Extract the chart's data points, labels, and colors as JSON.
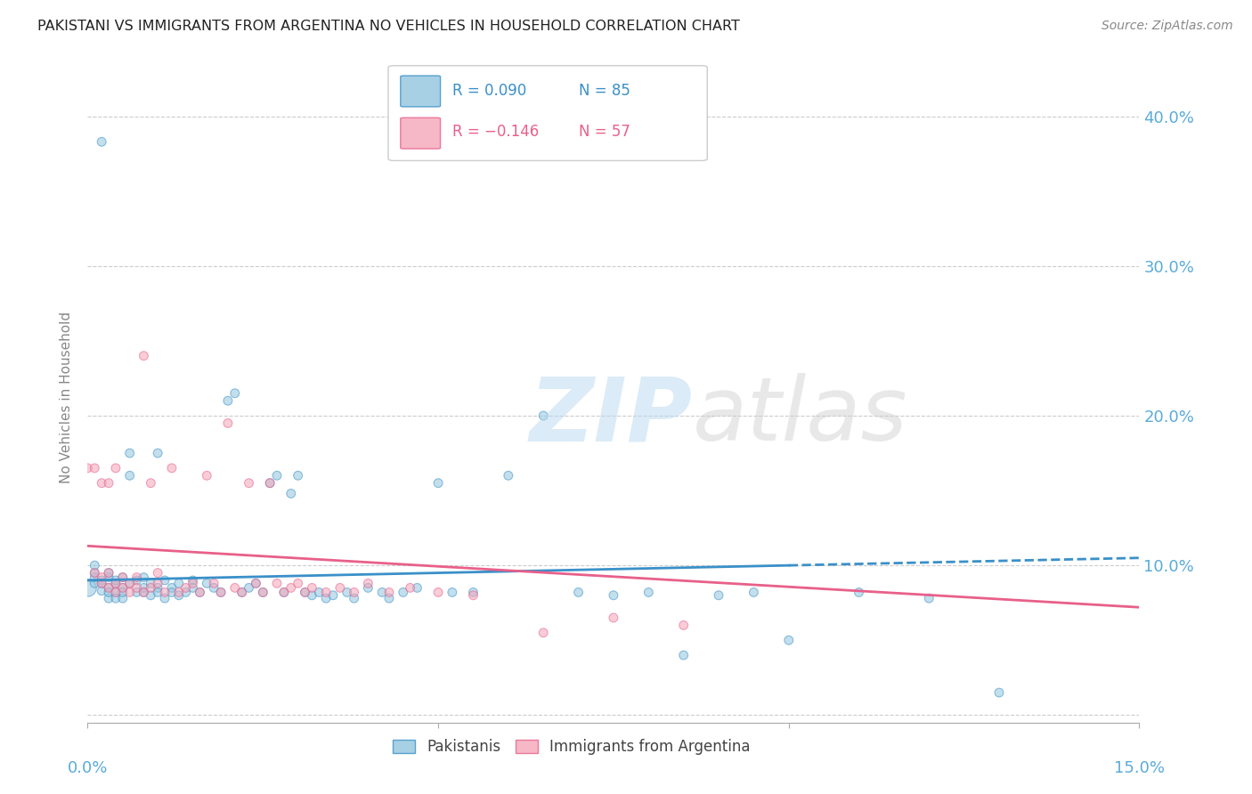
{
  "title": "PAKISTANI VS IMMIGRANTS FROM ARGENTINA NO VEHICLES IN HOUSEHOLD CORRELATION CHART",
  "source": "Source: ZipAtlas.com",
  "ylabel": "No Vehicles in Household",
  "xlim": [
    0.0,
    0.15
  ],
  "ylim": [
    -0.005,
    0.43
  ],
  "yticks": [
    0.0,
    0.1,
    0.2,
    0.3,
    0.4
  ],
  "ytick_labels": [
    "",
    "10.0%",
    "20.0%",
    "30.0%",
    "40.0%"
  ],
  "color_blue": "#92c5de",
  "color_pink": "#f4a5b8",
  "color_blue_dark": "#3a90c8",
  "color_pink_dark": "#e8608a",
  "color_axis_label": "#5aabda",
  "pakistani_x": [
    0.0,
    0.001,
    0.001,
    0.001,
    0.001,
    0.002,
    0.002,
    0.002,
    0.002,
    0.003,
    0.003,
    0.003,
    0.003,
    0.003,
    0.004,
    0.004,
    0.004,
    0.004,
    0.005,
    0.005,
    0.005,
    0.005,
    0.006,
    0.006,
    0.006,
    0.007,
    0.007,
    0.008,
    0.008,
    0.008,
    0.009,
    0.009,
    0.01,
    0.01,
    0.01,
    0.011,
    0.011,
    0.012,
    0.012,
    0.013,
    0.013,
    0.014,
    0.015,
    0.015,
    0.016,
    0.017,
    0.018,
    0.019,
    0.02,
    0.021,
    0.022,
    0.023,
    0.024,
    0.025,
    0.026,
    0.027,
    0.028,
    0.029,
    0.03,
    0.031,
    0.032,
    0.033,
    0.034,
    0.035,
    0.037,
    0.038,
    0.04,
    0.042,
    0.043,
    0.045,
    0.047,
    0.05,
    0.052,
    0.055,
    0.06,
    0.065,
    0.07,
    0.075,
    0.08,
    0.085,
    0.09,
    0.095,
    0.1,
    0.11,
    0.12,
    0.13
  ],
  "pakistani_y": [
    0.085,
    0.092,
    0.088,
    0.095,
    0.1,
    0.383,
    0.09,
    0.088,
    0.083,
    0.085,
    0.092,
    0.078,
    0.095,
    0.082,
    0.088,
    0.082,
    0.09,
    0.078,
    0.085,
    0.092,
    0.078,
    0.082,
    0.16,
    0.175,
    0.088,
    0.082,
    0.09,
    0.085,
    0.082,
    0.092,
    0.08,
    0.088,
    0.175,
    0.085,
    0.082,
    0.09,
    0.078,
    0.085,
    0.082,
    0.08,
    0.088,
    0.082,
    0.09,
    0.085,
    0.082,
    0.088,
    0.085,
    0.082,
    0.21,
    0.215,
    0.082,
    0.085,
    0.088,
    0.082,
    0.155,
    0.16,
    0.082,
    0.148,
    0.16,
    0.082,
    0.08,
    0.082,
    0.078,
    0.08,
    0.082,
    0.078,
    0.085,
    0.082,
    0.078,
    0.082,
    0.085,
    0.155,
    0.082,
    0.082,
    0.16,
    0.2,
    0.082,
    0.08,
    0.082,
    0.04,
    0.08,
    0.082,
    0.05,
    0.082,
    0.078,
    0.015
  ],
  "pakistani_size": [
    200,
    50,
    50,
    50,
    50,
    50,
    50,
    50,
    50,
    50,
    50,
    50,
    50,
    50,
    50,
    50,
    50,
    50,
    50,
    50,
    50,
    50,
    50,
    50,
    50,
    50,
    50,
    50,
    50,
    50,
    50,
    50,
    50,
    50,
    50,
    50,
    50,
    50,
    50,
    50,
    50,
    50,
    50,
    50,
    50,
    50,
    50,
    50,
    50,
    50,
    50,
    50,
    50,
    50,
    50,
    50,
    50,
    50,
    50,
    50,
    50,
    50,
    50,
    50,
    50,
    50,
    50,
    50,
    50,
    50,
    50,
    50,
    50,
    50,
    50,
    50,
    50,
    50,
    50,
    50,
    50,
    50,
    50,
    50,
    50,
    50
  ],
  "argentina_x": [
    0.0,
    0.001,
    0.001,
    0.002,
    0.002,
    0.002,
    0.003,
    0.003,
    0.003,
    0.004,
    0.004,
    0.004,
    0.005,
    0.005,
    0.006,
    0.006,
    0.007,
    0.007,
    0.008,
    0.008,
    0.009,
    0.009,
    0.01,
    0.01,
    0.011,
    0.012,
    0.013,
    0.014,
    0.015,
    0.016,
    0.017,
    0.018,
    0.019,
    0.02,
    0.021,
    0.022,
    0.023,
    0.024,
    0.025,
    0.026,
    0.027,
    0.028,
    0.029,
    0.03,
    0.031,
    0.032,
    0.034,
    0.036,
    0.038,
    0.04,
    0.043,
    0.046,
    0.05,
    0.055,
    0.065,
    0.075,
    0.085
  ],
  "argentina_y": [
    0.165,
    0.095,
    0.165,
    0.092,
    0.155,
    0.088,
    0.085,
    0.095,
    0.155,
    0.088,
    0.082,
    0.165,
    0.085,
    0.092,
    0.088,
    0.082,
    0.085,
    0.092,
    0.24,
    0.082,
    0.085,
    0.155,
    0.088,
    0.095,
    0.082,
    0.165,
    0.082,
    0.085,
    0.088,
    0.082,
    0.16,
    0.088,
    0.082,
    0.195,
    0.085,
    0.082,
    0.155,
    0.088,
    0.082,
    0.155,
    0.088,
    0.082,
    0.085,
    0.088,
    0.082,
    0.085,
    0.082,
    0.085,
    0.082,
    0.088,
    0.082,
    0.085,
    0.082,
    0.08,
    0.055,
    0.065,
    0.06
  ],
  "argentina_size": [
    50,
    50,
    50,
    50,
    50,
    50,
    50,
    50,
    50,
    50,
    50,
    50,
    50,
    50,
    50,
    50,
    50,
    50,
    50,
    50,
    50,
    50,
    50,
    50,
    50,
    50,
    50,
    50,
    50,
    50,
    50,
    50,
    50,
    50,
    50,
    50,
    50,
    50,
    50,
    50,
    50,
    50,
    50,
    50,
    50,
    50,
    50,
    50,
    50,
    50,
    50,
    50,
    50,
    50,
    50,
    50,
    50
  ],
  "pk_trend_x0": 0.0,
  "pk_trend_y0": 0.09,
  "pk_trend_x1": 0.1,
  "pk_trend_y1": 0.1,
  "pk_trend_dash_x0": 0.1,
  "pk_trend_dash_x1": 0.15,
  "ar_trend_x0": 0.0,
  "ar_trend_y0": 0.113,
  "ar_trend_x1": 0.15,
  "ar_trend_y1": 0.072
}
